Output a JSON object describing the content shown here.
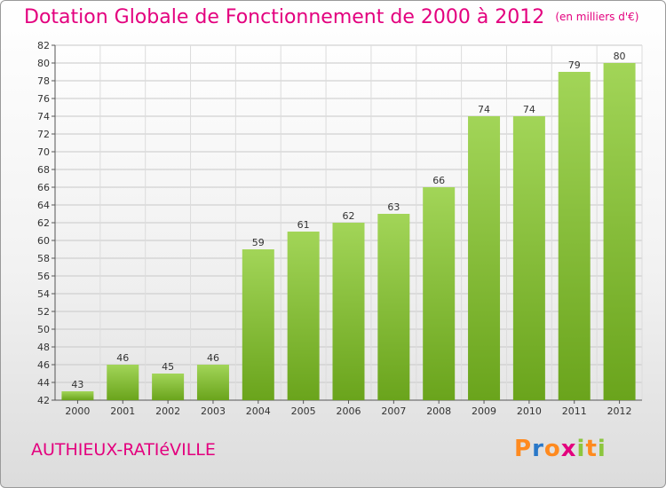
{
  "header": {
    "title": "Dotation Globale de Fonctionnement de 2000 à 2012",
    "subtitle": "(en milliers d'€)"
  },
  "footer": {
    "town": "AUTHIEUX-RATIéVILLE",
    "logo_text": "Proxiti",
    "logo_colors": [
      "#ff8a1f",
      "#2a78c8",
      "#e3007e",
      "#8cc63e"
    ]
  },
  "colors": {
    "bar_light": "#a2d558",
    "bar_dark": "#6aa41c",
    "accent": "#e3007e",
    "grid": "#c8c8c8"
  },
  "chart_data": {
    "type": "bar",
    "title": "Dotation Globale de Fonctionnement de 2000 à 2012",
    "subtitle": "(en milliers d'€)",
    "categories": [
      "2000",
      "2001",
      "2002",
      "2003",
      "2004",
      "2005",
      "2006",
      "2007",
      "2008",
      "2009",
      "2010",
      "2011",
      "2012"
    ],
    "values": [
      43,
      46,
      45,
      46,
      59,
      61,
      62,
      63,
      66,
      74,
      74,
      79,
      80
    ],
    "ylim": [
      42,
      82
    ],
    "yticks": [
      42,
      44,
      46,
      48,
      50,
      52,
      54,
      56,
      58,
      60,
      62,
      64,
      66,
      68,
      70,
      72,
      74,
      76,
      78,
      80,
      82
    ],
    "xlabel": "",
    "ylabel": "",
    "grid": true
  }
}
